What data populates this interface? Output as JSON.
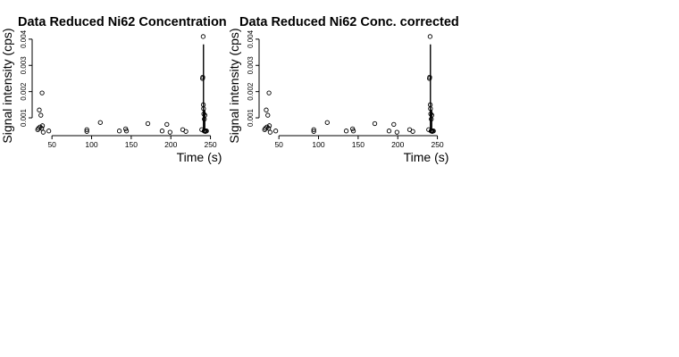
{
  "chart_data": [
    {
      "type": "scatter",
      "title": "Data Reduced Ni62 Concentration",
      "xlabel": "Time (s)",
      "ylabel": "Signal intensity (cps)",
      "xticks": [
        50,
        100,
        150,
        200,
        250
      ],
      "yticks": [
        "0.001",
        "0.002",
        "0.003",
        "0.004"
      ],
      "xlim": [
        25,
        255
      ],
      "ylim": [
        0.00032,
        0.0042
      ],
      "grid": false,
      "points": [
        {
          "x": 32,
          "y": 0.00055
        },
        {
          "x": 33,
          "y": 0.0006
        },
        {
          "x": 34,
          "y": 0.0013
        },
        {
          "x": 35,
          "y": 0.00065
        },
        {
          "x": 36,
          "y": 0.0011
        },
        {
          "x": 37,
          "y": 0.0006
        },
        {
          "x": 37.5,
          "y": 0.00195
        },
        {
          "x": 38,
          "y": 0.0007
        },
        {
          "x": 39,
          "y": 0.00045
        },
        {
          "x": 46,
          "y": 0.0005
        },
        {
          "x": 94,
          "y": 0.00055
        },
        {
          "x": 94,
          "y": 0.00048
        },
        {
          "x": 111,
          "y": 0.00082
        },
        {
          "x": 135,
          "y": 0.0005
        },
        {
          "x": 143,
          "y": 0.00058
        },
        {
          "x": 144,
          "y": 0.0005
        },
        {
          "x": 171,
          "y": 0.00078
        },
        {
          "x": 189,
          "y": 0.0005
        },
        {
          "x": 195,
          "y": 0.00075
        },
        {
          "x": 199,
          "y": 0.00045
        },
        {
          "x": 215,
          "y": 0.00055
        },
        {
          "x": 219,
          "y": 0.00048
        },
        {
          "x": 239,
          "y": 0.00055
        },
        {
          "x": 240,
          "y": 0.0025
        },
        {
          "x": 240.3,
          "y": 0.00255
        },
        {
          "x": 240.8,
          "y": 0.0041
        },
        {
          "x": 241,
          "y": 0.0015
        },
        {
          "x": 241.3,
          "y": 0.00135
        },
        {
          "x": 241.6,
          "y": 0.00115
        },
        {
          "x": 242,
          "y": 0.0005
        },
        {
          "x": 242.3,
          "y": 0.00095
        },
        {
          "x": 242.6,
          "y": 0.0005
        },
        {
          "x": 243,
          "y": 0.0011
        },
        {
          "x": 243.5,
          "y": 0.00048
        },
        {
          "x": 244,
          "y": 0.0005
        },
        {
          "x": 245,
          "y": 0.0005
        }
      ],
      "vlines": [
        {
          "x": 241.2,
          "y0": 0.0005,
          "y1": 0.0038
        },
        {
          "x": 242.8,
          "y0": 0.0005,
          "y1": 0.0013
        }
      ]
    },
    {
      "type": "scatter",
      "title": "Data Reduced Ni62 Conc. corrected",
      "xlabel": "Time (s)",
      "ylabel": "Signal intensity (cps)",
      "xticks": [
        50,
        100,
        150,
        200,
        250
      ],
      "yticks": [
        "0.001",
        "0.002",
        "0.003",
        "0.004"
      ],
      "xlim": [
        25,
        255
      ],
      "ylim": [
        0.00032,
        0.0042
      ],
      "grid": false,
      "points": [
        {
          "x": 32,
          "y": 0.00055
        },
        {
          "x": 33,
          "y": 0.0006
        },
        {
          "x": 34,
          "y": 0.0013
        },
        {
          "x": 35,
          "y": 0.00065
        },
        {
          "x": 36,
          "y": 0.0011
        },
        {
          "x": 37,
          "y": 0.0006
        },
        {
          "x": 37.5,
          "y": 0.00195
        },
        {
          "x": 38,
          "y": 0.0007
        },
        {
          "x": 39,
          "y": 0.00045
        },
        {
          "x": 46,
          "y": 0.0005
        },
        {
          "x": 94,
          "y": 0.00055
        },
        {
          "x": 94,
          "y": 0.00048
        },
        {
          "x": 111,
          "y": 0.00082
        },
        {
          "x": 135,
          "y": 0.0005
        },
        {
          "x": 143,
          "y": 0.00058
        },
        {
          "x": 144,
          "y": 0.0005
        },
        {
          "x": 171,
          "y": 0.00078
        },
        {
          "x": 189,
          "y": 0.0005
        },
        {
          "x": 195,
          "y": 0.00075
        },
        {
          "x": 199,
          "y": 0.00045
        },
        {
          "x": 215,
          "y": 0.00055
        },
        {
          "x": 219,
          "y": 0.00048
        },
        {
          "x": 239,
          "y": 0.00055
        },
        {
          "x": 240,
          "y": 0.0025
        },
        {
          "x": 240.3,
          "y": 0.00255
        },
        {
          "x": 240.8,
          "y": 0.0041
        },
        {
          "x": 241,
          "y": 0.0015
        },
        {
          "x": 241.3,
          "y": 0.00135
        },
        {
          "x": 241.6,
          "y": 0.00115
        },
        {
          "x": 242,
          "y": 0.0005
        },
        {
          "x": 242.3,
          "y": 0.00095
        },
        {
          "x": 242.6,
          "y": 0.0005
        },
        {
          "x": 243,
          "y": 0.0011
        },
        {
          "x": 243.5,
          "y": 0.00048
        },
        {
          "x": 244,
          "y": 0.0005
        },
        {
          "x": 245,
          "y": 0.0005
        }
      ],
      "vlines": [
        {
          "x": 241.2,
          "y0": 0.0005,
          "y1": 0.0038
        },
        {
          "x": 242.8,
          "y0": 0.0005,
          "y1": 0.0013
        }
      ]
    }
  ]
}
